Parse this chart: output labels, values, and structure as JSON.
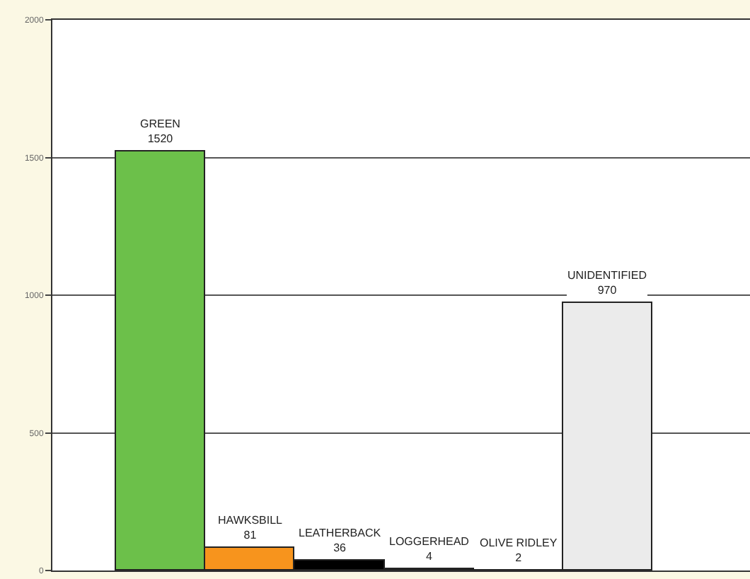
{
  "chart_data": {
    "type": "bar",
    "categories": [
      "GREEN",
      "HAWKSBILL",
      "LEATHERBACK",
      "LOGGERHEAD",
      "OLIVE RIDLEY",
      "UNIDENTIFIED"
    ],
    "values": [
      1520,
      81,
      36,
      4,
      2,
      970
    ],
    "colors": [
      "#6cc04a",
      "#f7941d",
      "#000000",
      "#222222",
      "#222222",
      "#ebebeb"
    ],
    "ylim": [
      0,
      2000
    ],
    "yticks": [
      0,
      500,
      1000,
      1500,
      2000
    ],
    "grid": "y",
    "data_labels": true,
    "tick_labels": "y"
  }
}
